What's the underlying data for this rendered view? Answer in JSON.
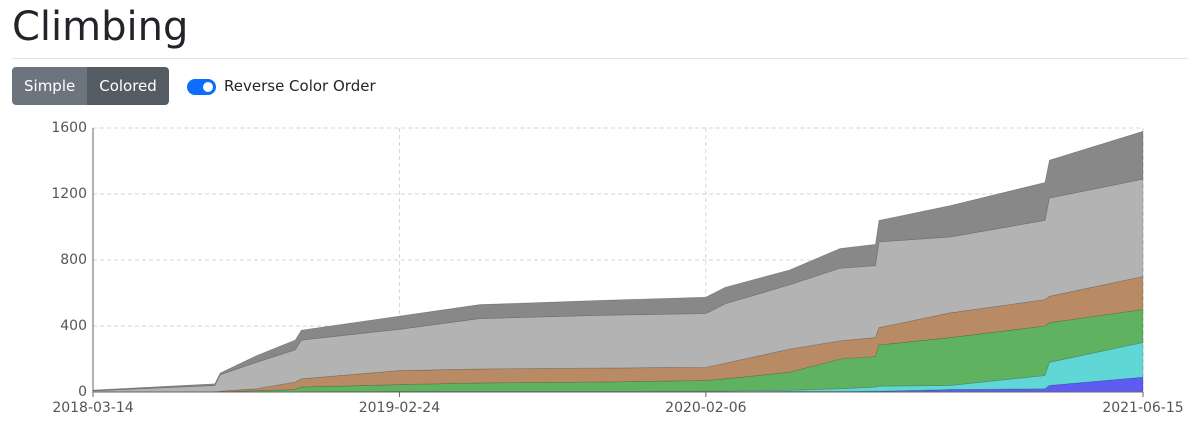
{
  "header": {
    "title": "Climbing"
  },
  "controls": {
    "buttons": [
      "Simple",
      "Colored"
    ],
    "toggle_label": "Reverse Color Order"
  },
  "chart_data": {
    "type": "stacked-area",
    "x": [
      "2018-03-14",
      "2018-07-30",
      "2018-08-05",
      "2018-09-15",
      "2018-10-29",
      "2018-11-05",
      "2019-02-24",
      "2019-05-26",
      "2019-10-09",
      "2020-02-06",
      "2020-02-28",
      "2020-05-11",
      "2020-07-07",
      "2020-08-16",
      "2020-08-20",
      "2020-11-09",
      "2021-02-24",
      "2021-03-01",
      "2021-06-15"
    ],
    "series": [
      {
        "color": "#5c5cf5",
        "values": [
          0,
          0,
          0,
          0,
          0,
          0,
          2,
          2,
          2,
          3,
          3,
          4,
          4,
          5,
          5,
          15,
          20,
          40,
          90
        ]
      },
      {
        "color": "#5fd7d7",
        "values": [
          0,
          0,
          0,
          0,
          0,
          2,
          2,
          2,
          2,
          2,
          3,
          6,
          16,
          25,
          30,
          25,
          80,
          140,
          210
        ]
      },
      {
        "color": "#5fb25f",
        "values": [
          0,
          0,
          2,
          8,
          15,
          28,
          41,
          51,
          56,
          65,
          74,
          110,
          180,
          185,
          250,
          290,
          300,
          240,
          200
        ]
      },
      {
        "color": "#b88b64",
        "values": [
          0,
          2,
          3,
          12,
          45,
          50,
          85,
          85,
          85,
          80,
          95,
          140,
          110,
          115,
          105,
          150,
          160,
          160,
          200
        ]
      },
      {
        "color": "#b3b3b3",
        "values": [
          7,
          38,
          100,
          160,
          195,
          235,
          250,
          305,
          320,
          325,
          360,
          390,
          440,
          435,
          520,
          460,
          480,
          595,
          590
        ]
      },
      {
        "color": "#888888",
        "values": [
          5,
          10,
          10,
          40,
          60,
          60,
          80,
          85,
          90,
          100,
          100,
          90,
          120,
          130,
          130,
          190,
          230,
          230,
          290
        ]
      }
    ],
    "xlim": [
      "2018-03-14",
      "2021-06-15"
    ],
    "xticks": [
      "2018-03-14",
      "2019-02-24",
      "2020-02-06",
      "2021-06-15"
    ],
    "ylim": [
      0,
      1600
    ],
    "yticks": [
      0,
      400,
      800,
      1200,
      1600
    ],
    "grid": true
  }
}
